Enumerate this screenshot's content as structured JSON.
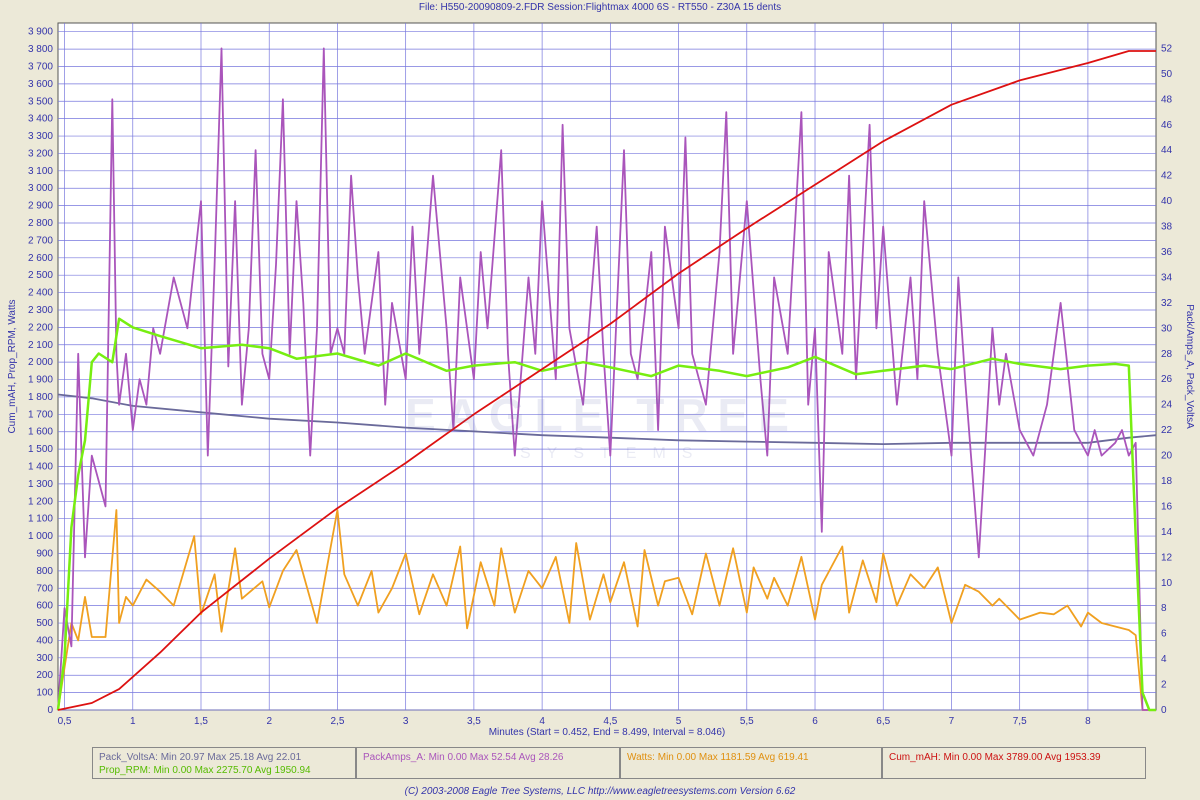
{
  "title": "File: H550-20090809-2.FDR   Session:Flightmax 4000 6S - RT550 - Z30A 15 dents",
  "watermark": {
    "main": "EAGLE TREE",
    "sub": "SYSTEMS"
  },
  "footer": "(C) 2003-2008 Eagle Tree Systems, LLC     http://www.eagletreesystems.com     Version 6.62",
  "stats": {
    "volts": "Pack_VoltsA:  Min 20.97    Max 25.18    Avg 22.01",
    "rpm": "Prop_RPM:  Min 0.00    Max 2275.70    Avg 1950.94",
    "amps": "PackAmps_A:  Min 0.00    Max 52.54    Avg 28.26",
    "watts": "Watts:  Min 0.00    Max 1181.59    Avg 619.41",
    "mah": "Cum_mAH:  Min 0.00    Max 3789.00    Avg 1953.39"
  },
  "colors": {
    "volts": "#6a6a9a",
    "rpm": "#77ee11",
    "amps": "#aa55bb",
    "watts": "#f0a020",
    "mah": "#dd1111",
    "grid": "#7777dd",
    "plot_bg": "#ffffff"
  },
  "chart_data": {
    "type": "line",
    "xlabel": "Minutes (Start = 0.452,  End = 8.499,  Interval =  8.046)",
    "ylabel_left": "Cum_mAH, Prop_RPM, Watts",
    "ylabel_right": "Pack/Amps_A, Pack_VoltsA",
    "xlim": [
      0.452,
      8.499
    ],
    "ylim_left": [
      0,
      3950
    ],
    "ylim_right": [
      0,
      54
    ],
    "x_ticks": [
      "0,5",
      "1",
      "1,5",
      "2",
      "2,5",
      "3",
      "3,5",
      "4",
      "4,5",
      "5",
      "5,5",
      "6",
      "6,5",
      "7",
      "7,5",
      "8"
    ],
    "y_left_ticks": [
      "0",
      "100",
      "200",
      "300",
      "400",
      "500",
      "600",
      "700",
      "800",
      "900",
      "1 000",
      "1 100",
      "1 200",
      "1 300",
      "1 400",
      "1 500",
      "1 600",
      "1 700",
      "1 800",
      "1 900",
      "2 000",
      "2 100",
      "2 200",
      "2 300",
      "2 400",
      "2 500",
      "2 600",
      "2 700",
      "2 800",
      "2 900",
      "3 000",
      "3 100",
      "3 200",
      "3 300",
      "3 400",
      "3 500",
      "3 600",
      "3 700",
      "3 800",
      "3 900"
    ],
    "y_right_ticks": [
      "0",
      "2",
      "4",
      "6",
      "8",
      "10",
      "12",
      "14",
      "16",
      "18",
      "20",
      "22",
      "24",
      "26",
      "28",
      "30",
      "32",
      "34",
      "36",
      "38",
      "40",
      "42",
      "44",
      "46",
      "48",
      "50",
      "52"
    ],
    "series": [
      {
        "name": "Cum_mAH",
        "axis": "left",
        "color": "#dd1111",
        "x": [
          0.452,
          0.7,
          0.9,
          1.2,
          1.5,
          2.0,
          2.5,
          3.0,
          3.5,
          4.0,
          4.5,
          5.0,
          5.5,
          6.0,
          6.5,
          7.0,
          7.5,
          8.0,
          8.3,
          8.499
        ],
        "y": [
          0,
          40,
          120,
          330,
          560,
          870,
          1160,
          1420,
          1700,
          1960,
          2220,
          2510,
          2770,
          3020,
          3270,
          3480,
          3620,
          3720,
          3789,
          3789
        ]
      },
      {
        "name": "Prop_RPM",
        "axis": "left",
        "color": "#77ee11",
        "x": [
          0.452,
          0.5,
          0.55,
          0.6,
          0.65,
          0.7,
          0.75,
          0.85,
          0.9,
          1.0,
          1.2,
          1.5,
          1.8,
          2.0,
          2.2,
          2.5,
          2.8,
          3.0,
          3.3,
          3.5,
          3.8,
          4.0,
          4.3,
          4.5,
          4.8,
          5.0,
          5.3,
          5.5,
          5.8,
          6.0,
          6.3,
          6.5,
          6.8,
          7.0,
          7.3,
          7.5,
          7.8,
          8.0,
          8.2,
          8.3,
          8.35,
          8.4,
          8.45,
          8.499
        ],
        "y": [
          0,
          300,
          1050,
          1350,
          1550,
          2000,
          2050,
          2000,
          2250,
          2200,
          2150,
          2080,
          2100,
          2080,
          2020,
          2050,
          1980,
          2050,
          1950,
          1980,
          2000,
          1950,
          2000,
          1970,
          1920,
          1980,
          1950,
          1920,
          1970,
          2030,
          1930,
          1950,
          1980,
          1960,
          2020,
          1990,
          1960,
          1980,
          1990,
          1980,
          1000,
          100,
          0,
          0
        ]
      },
      {
        "name": "Watts",
        "axis": "left",
        "color": "#f0a020",
        "x": [
          0.452,
          0.55,
          0.6,
          0.65,
          0.7,
          0.8,
          0.88,
          0.9,
          0.95,
          1.0,
          1.1,
          1.2,
          1.3,
          1.45,
          1.5,
          1.6,
          1.65,
          1.75,
          1.8,
          1.95,
          2.0,
          2.1,
          2.2,
          2.35,
          2.4,
          2.5,
          2.55,
          2.65,
          2.75,
          2.8,
          2.9,
          3.0,
          3.1,
          3.2,
          3.3,
          3.4,
          3.45,
          3.55,
          3.65,
          3.7,
          3.8,
          3.9,
          4.0,
          4.1,
          4.2,
          4.25,
          4.35,
          4.45,
          4.5,
          4.6,
          4.7,
          4.75,
          4.85,
          4.9,
          5.0,
          5.1,
          5.2,
          5.3,
          5.4,
          5.5,
          5.55,
          5.65,
          5.7,
          5.8,
          5.9,
          6.0,
          6.05,
          6.2,
          6.25,
          6.35,
          6.45,
          6.5,
          6.6,
          6.7,
          6.8,
          6.9,
          7.0,
          7.1,
          7.2,
          7.3,
          7.35,
          7.45,
          7.5,
          7.65,
          7.75,
          7.85,
          7.95,
          8.0,
          8.1,
          8.2,
          8.3,
          8.35,
          8.4,
          8.499
        ],
        "y": [
          0,
          500,
          400,
          650,
          420,
          420,
          1150,
          500,
          650,
          600,
          750,
          680,
          600,
          1000,
          550,
          780,
          450,
          930,
          640,
          740,
          590,
          800,
          920,
          500,
          720,
          1150,
          780,
          600,
          800,
          560,
          700,
          900,
          550,
          780,
          600,
          940,
          470,
          850,
          600,
          930,
          560,
          800,
          700,
          880,
          500,
          960,
          520,
          780,
          620,
          850,
          480,
          920,
          600,
          740,
          760,
          550,
          900,
          600,
          930,
          560,
          820,
          640,
          760,
          600,
          880,
          520,
          720,
          940,
          560,
          860,
          620,
          900,
          600,
          780,
          700,
          820,
          500,
          720,
          680,
          600,
          640,
          560,
          520,
          560,
          550,
          600,
          480,
          560,
          500,
          480,
          460,
          430,
          0,
          0
        ]
      },
      {
        "name": "PackAmps_A",
        "axis": "right",
        "color": "#aa55bb",
        "x": [
          0.452,
          0.5,
          0.55,
          0.6,
          0.65,
          0.7,
          0.75,
          0.8,
          0.85,
          0.88,
          0.9,
          0.95,
          1.0,
          1.05,
          1.1,
          1.15,
          1.2,
          1.3,
          1.4,
          1.5,
          1.55,
          1.6,
          1.65,
          1.7,
          1.75,
          1.8,
          1.85,
          1.9,
          1.95,
          2.0,
          2.05,
          2.1,
          2.15,
          2.2,
          2.25,
          2.3,
          2.35,
          2.4,
          2.45,
          2.5,
          2.55,
          2.6,
          2.65,
          2.7,
          2.8,
          2.85,
          2.9,
          3.0,
          3.05,
          3.1,
          3.2,
          3.3,
          3.35,
          3.4,
          3.5,
          3.55,
          3.6,
          3.7,
          3.75,
          3.8,
          3.9,
          3.95,
          4.0,
          4.1,
          4.15,
          4.2,
          4.3,
          4.4,
          4.45,
          4.5,
          4.6,
          4.65,
          4.7,
          4.8,
          4.85,
          4.9,
          5.0,
          5.05,
          5.1,
          5.2,
          5.3,
          5.35,
          5.4,
          5.5,
          5.6,
          5.65,
          5.7,
          5.8,
          5.9,
          5.95,
          6.0,
          6.05,
          6.1,
          6.2,
          6.25,
          6.3,
          6.4,
          6.45,
          6.5,
          6.6,
          6.7,
          6.75,
          6.8,
          6.9,
          7.0,
          7.05,
          7.1,
          7.2,
          7.3,
          7.35,
          7.4,
          7.5,
          7.6,
          7.7,
          7.8,
          7.9,
          8.0,
          8.05,
          8.1,
          8.2,
          8.25,
          8.3,
          8.35,
          8.4,
          8.45,
          8.499
        ],
        "y": [
          0,
          8,
          5,
          28,
          12,
          20,
          18,
          16,
          48,
          28,
          24,
          28,
          22,
          26,
          24,
          30,
          28,
          34,
          30,
          40,
          20,
          35,
          52,
          27,
          40,
          24,
          30,
          44,
          28,
          26,
          35,
          48,
          28,
          40,
          32,
          20,
          30,
          52,
          28,
          30,
          28,
          42,
          34,
          28,
          36,
          24,
          32,
          26,
          38,
          28,
          42,
          30,
          22,
          34,
          26,
          36,
          30,
          44,
          28,
          20,
          34,
          28,
          40,
          26,
          46,
          30,
          24,
          38,
          28,
          20,
          44,
          28,
          26,
          36,
          22,
          38,
          30,
          45,
          28,
          24,
          36,
          47,
          28,
          40,
          26,
          20,
          34,
          28,
          47,
          24,
          30,
          14,
          36,
          28,
          42,
          26,
          46,
          30,
          38,
          24,
          34,
          26,
          40,
          28,
          20,
          34,
          26,
          12,
          30,
          24,
          28,
          22,
          20,
          24,
          32,
          22,
          20,
          22,
          20,
          21,
          22,
          20,
          21,
          0,
          0,
          0
        ]
      },
      {
        "name": "Pack_VoltsA",
        "axis": "right",
        "color": "#6a6a9a",
        "x": [
          0.452,
          0.7,
          1.0,
          1.5,
          2.0,
          2.5,
          3.0,
          3.5,
          4.0,
          4.5,
          5.0,
          5.5,
          6.0,
          6.5,
          7.0,
          7.5,
          8.0,
          8.3,
          8.499
        ],
        "y": [
          24.8,
          24.5,
          23.9,
          23.4,
          22.9,
          22.6,
          22.2,
          21.9,
          21.6,
          21.4,
          21.2,
          21.1,
          21.0,
          20.9,
          21.0,
          21.0,
          21.0,
          21.4,
          21.6
        ]
      }
    ]
  }
}
